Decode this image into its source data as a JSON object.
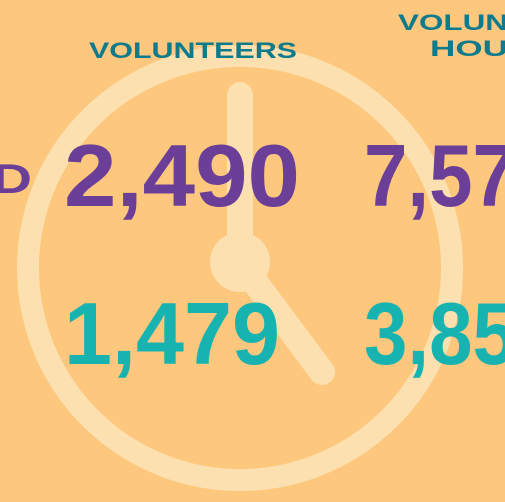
{
  "stats": [
    {
      "label_lines": [
        "D"
      ],
      "volunteers": "2,490",
      "hours": "7,57"
    },
    {
      "volunteers": "1,479",
      "hours": "3,85"
    }
  ],
  "headers": {
    "volunteers": "VOLUNTEERS",
    "hours_lines": [
      "VOLUN",
      "HOU"
    ]
  }
}
